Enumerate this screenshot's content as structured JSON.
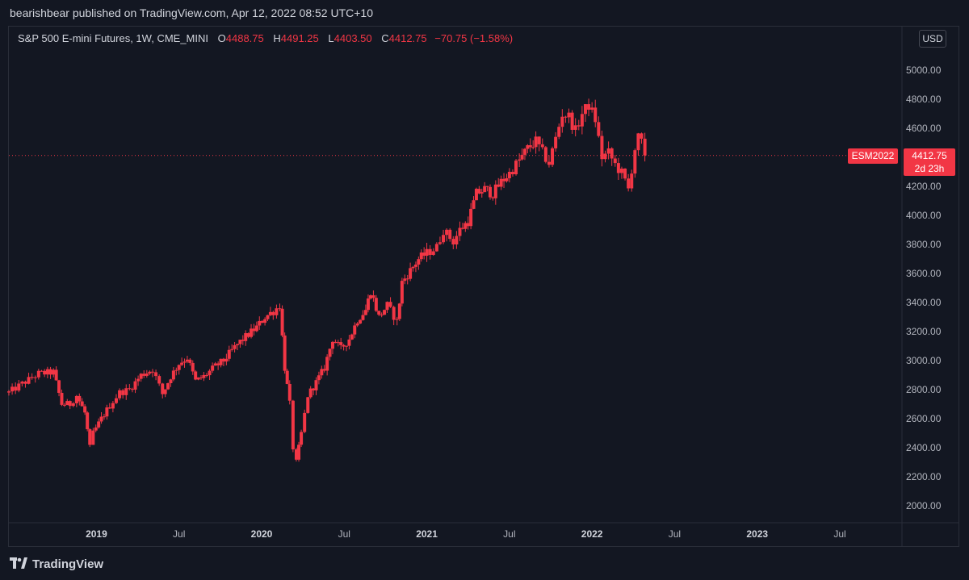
{
  "header": {
    "published": "bearishbear published on TradingView.com, Apr 12, 2022 08:52 UTC+10"
  },
  "legend": {
    "symbol": "S&P 500 E-mini Futures, 1W, CME_MINI",
    "o_label": "O",
    "o_value": "4488.75",
    "h_label": "H",
    "h_value": "4491.25",
    "l_label": "L",
    "l_value": "4403.50",
    "c_label": "C",
    "c_value": "4412.75",
    "change": "−70.75 (−1.58%)"
  },
  "currency_button": "USD",
  "ticker_badge": "ESM2022",
  "price_badge": {
    "price": "4412.75",
    "countdown": "2d 23h"
  },
  "footer": {
    "brand": "TradingView"
  },
  "colors": {
    "background": "#131722",
    "candle": "#f23645",
    "grid": "#2a2e39",
    "text": "#d1d4dc"
  },
  "chart_data": {
    "type": "candlestick",
    "interval": "1W",
    "ylim": [
      1900,
      5100
    ],
    "y_ticks": [
      "2000.00",
      "2200.00",
      "2400.00",
      "2600.00",
      "2800.00",
      "3000.00",
      "3200.00",
      "3400.00",
      "3600.00",
      "3800.00",
      "4000.00",
      "4200.00",
      "4400.00",
      "4600.00",
      "4800.00",
      "5000.00"
    ],
    "x_ticks": [
      {
        "label": "2019",
        "t": 2019.0
      },
      {
        "label": "Jul",
        "t": 2019.5
      },
      {
        "label": "2020",
        "t": 2020.0
      },
      {
        "label": "Jul",
        "t": 2020.5
      },
      {
        "label": "2021",
        "t": 2021.0
      },
      {
        "label": "Jul",
        "t": 2021.5
      },
      {
        "label": "2022",
        "t": 2022.0
      },
      {
        "label": "Jul",
        "t": 2022.5
      },
      {
        "label": "2023",
        "t": 2023.0
      },
      {
        "label": "Jul",
        "t": 2023.5
      }
    ],
    "xlim": [
      2018.47,
      2024.0
    ],
    "last_price": 4412.75,
    "closes": [
      {
        "t": 2018.47,
        "c": 2780
      },
      {
        "t": 2018.55,
        "c": 2840
      },
      {
        "t": 2018.65,
        "c": 2910
      },
      {
        "t": 2018.74,
        "c": 2920
      },
      {
        "t": 2018.79,
        "c": 2700
      },
      {
        "t": 2018.84,
        "c": 2700
      },
      {
        "t": 2018.88,
        "c": 2760
      },
      {
        "t": 2018.93,
        "c": 2640
      },
      {
        "t": 2018.96,
        "c": 2400
      },
      {
        "t": 2018.98,
        "c": 2500
      },
      {
        "t": 2019.03,
        "c": 2600
      },
      {
        "t": 2019.08,
        "c": 2690
      },
      {
        "t": 2019.14,
        "c": 2780
      },
      {
        "t": 2019.2,
        "c": 2800
      },
      {
        "t": 2019.27,
        "c": 2900
      },
      {
        "t": 2019.34,
        "c": 2940
      },
      {
        "t": 2019.4,
        "c": 2770
      },
      {
        "t": 2019.45,
        "c": 2890
      },
      {
        "t": 2019.5,
        "c": 2980
      },
      {
        "t": 2019.55,
        "c": 3020
      },
      {
        "t": 2019.6,
        "c": 2860
      },
      {
        "t": 2019.65,
        "c": 2890
      },
      {
        "t": 2019.72,
        "c": 2960
      },
      {
        "t": 2019.77,
        "c": 3000
      },
      {
        "t": 2019.82,
        "c": 3070
      },
      {
        "t": 2019.87,
        "c": 3130
      },
      {
        "t": 2019.92,
        "c": 3180
      },
      {
        "t": 2019.97,
        "c": 3230
      },
      {
        "t": 2020.02,
        "c": 3300
      },
      {
        "t": 2020.07,
        "c": 3340
      },
      {
        "t": 2020.11,
        "c": 3380
      },
      {
        "t": 2020.14,
        "c": 2950
      },
      {
        "t": 2020.17,
        "c": 2700
      },
      {
        "t": 2020.19,
        "c": 2400
      },
      {
        "t": 2020.21,
        "c": 2300
      },
      {
        "t": 2020.24,
        "c": 2500
      },
      {
        "t": 2020.28,
        "c": 2760
      },
      {
        "t": 2020.33,
        "c": 2850
      },
      {
        "t": 2020.38,
        "c": 2950
      },
      {
        "t": 2020.43,
        "c": 3150
      },
      {
        "t": 2020.48,
        "c": 3080
      },
      {
        "t": 2020.53,
        "c": 3150
      },
      {
        "t": 2020.58,
        "c": 3280
      },
      {
        "t": 2020.63,
        "c": 3350
      },
      {
        "t": 2020.66,
        "c": 3480
      },
      {
        "t": 2020.71,
        "c": 3300
      },
      {
        "t": 2020.76,
        "c": 3380
      },
      {
        "t": 2020.82,
        "c": 3270
      },
      {
        "t": 2020.85,
        "c": 3540
      },
      {
        "t": 2020.9,
        "c": 3620
      },
      {
        "t": 2020.95,
        "c": 3700
      },
      {
        "t": 2021.0,
        "c": 3740
      },
      {
        "t": 2021.06,
        "c": 3780
      },
      {
        "t": 2021.1,
        "c": 3900
      },
      {
        "t": 2021.16,
        "c": 3820
      },
      {
        "t": 2021.2,
        "c": 3900
      },
      {
        "t": 2021.25,
        "c": 3960
      },
      {
        "t": 2021.3,
        "c": 4150
      },
      {
        "t": 2021.35,
        "c": 4180
      },
      {
        "t": 2021.4,
        "c": 4150
      },
      {
        "t": 2021.45,
        "c": 4230
      },
      {
        "t": 2021.5,
        "c": 4290
      },
      {
        "t": 2021.56,
        "c": 4380
      },
      {
        "t": 2021.61,
        "c": 4460
      },
      {
        "t": 2021.66,
        "c": 4510
      },
      {
        "t": 2021.7,
        "c": 4430
      },
      {
        "t": 2021.74,
        "c": 4360
      },
      {
        "t": 2021.78,
        "c": 4530
      },
      {
        "t": 2021.82,
        "c": 4700
      },
      {
        "t": 2021.86,
        "c": 4680
      },
      {
        "t": 2021.9,
        "c": 4580
      },
      {
        "t": 2021.94,
        "c": 4700
      },
      {
        "t": 2021.98,
        "c": 4760
      },
      {
        "t": 2022.02,
        "c": 4660
      },
      {
        "t": 2022.06,
        "c": 4400
      },
      {
        "t": 2022.1,
        "c": 4430
      },
      {
        "t": 2022.14,
        "c": 4350
      },
      {
        "t": 2022.18,
        "c": 4290
      },
      {
        "t": 2022.22,
        "c": 4180
      },
      {
        "t": 2022.24,
        "c": 4320
      },
      {
        "t": 2022.26,
        "c": 4460
      },
      {
        "t": 2022.28,
        "c": 4530
      },
      {
        "t": 2022.3,
        "c": 4500
      },
      {
        "t": 2022.32,
        "c": 4412.75
      }
    ]
  }
}
